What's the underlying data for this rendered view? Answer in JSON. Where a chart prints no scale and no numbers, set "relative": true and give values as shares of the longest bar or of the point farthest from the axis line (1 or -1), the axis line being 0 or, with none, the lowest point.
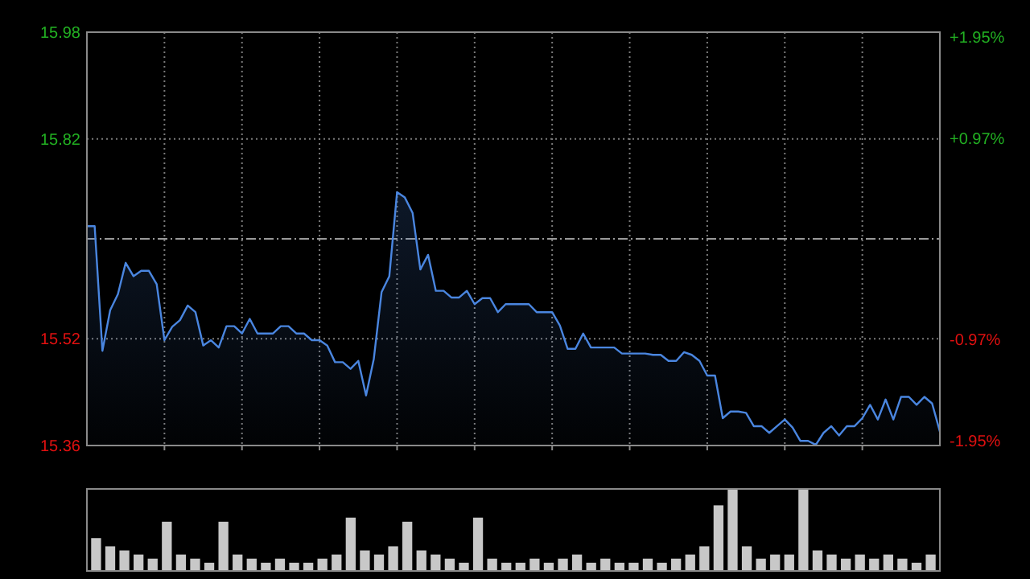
{
  "chart_data": [
    {
      "type": "area",
      "categories": [
        null,
        null,
        null,
        null,
        null,
        null,
        null,
        null,
        null,
        null,
        null,
        null,
        null,
        null,
        null,
        null,
        null,
        null,
        null,
        null,
        null,
        null,
        null,
        null,
        null,
        null,
        null,
        null,
        null,
        null,
        null,
        null,
        null,
        null,
        null,
        null,
        null,
        null,
        null,
        null,
        null,
        null,
        null,
        null,
        null,
        null,
        null,
        null,
        null,
        null,
        null,
        null,
        null,
        null,
        null,
        null,
        null,
        null,
        null,
        null,
        null,
        null,
        null,
        null,
        null,
        null,
        null,
        null,
        null,
        null,
        null,
        null,
        null,
        null,
        null,
        null,
        null,
        null,
        null,
        null,
        null,
        null,
        null,
        null,
        null,
        null,
        null,
        null,
        null,
        null,
        null,
        null,
        null,
        null,
        null,
        null,
        null,
        null,
        null,
        null,
        null,
        null,
        null,
        null,
        null,
        null,
        null,
        null,
        null,
        null,
        null
      ],
      "ylim": [
        15.36,
        15.98
      ],
      "yticks": [
        15.36,
        15.52,
        15.82,
        15.98
      ],
      "y2lim": [
        -2.0,
        2.0
      ],
      "y2ticks": [
        {
          "value": -1.95,
          "label": "-1.95%"
        },
        {
          "value": -0.97,
          "label": "-0.97%"
        },
        {
          "value": 0.97,
          "label": "+0.97%"
        },
        {
          "value": 1.95,
          "label": "+1.95%"
        }
      ],
      "grid": true,
      "ref_lines": [
        {
          "axis": "y",
          "value": 15.67,
          "line_style": "dashed",
          "color": "#9a9a9a"
        }
      ],
      "series": [
        {
          "color": "#4a86e0",
          "values": [
            15.689,
            15.689,
            15.502,
            15.563,
            15.587,
            15.634,
            15.614,
            15.622,
            15.622,
            15.602,
            15.518,
            15.538,
            15.548,
            15.57,
            15.56,
            15.51,
            15.518,
            15.507,
            15.539,
            15.539,
            15.528,
            15.55,
            15.528,
            15.528,
            15.528,
            15.539,
            15.539,
            15.528,
            15.528,
            15.518,
            15.518,
            15.51,
            15.485,
            15.485,
            15.475,
            15.487,
            15.435,
            15.49,
            15.59,
            15.614,
            15.74,
            15.732,
            15.709,
            15.624,
            15.646,
            15.592,
            15.592,
            15.582,
            15.582,
            15.592,
            15.572,
            15.581,
            15.581,
            15.56,
            15.572,
            15.572,
            15.572,
            15.572,
            15.56,
            15.56,
            15.56,
            15.54,
            15.505,
            15.505,
            15.528,
            15.507,
            15.507,
            15.507,
            15.507,
            15.498,
            15.498,
            15.498,
            15.498,
            15.496,
            15.496,
            15.487,
            15.487,
            15.5,
            15.496,
            15.487,
            15.465,
            15.465,
            15.401,
            15.411,
            15.411,
            15.409,
            15.389,
            15.389,
            15.379,
            15.389,
            15.399,
            15.387,
            15.367,
            15.367,
            15.361,
            15.379,
            15.389,
            15.375,
            15.389,
            15.389,
            15.401,
            15.421,
            15.399,
            15.429,
            15.399,
            15.433,
            15.433,
            15.421,
            15.433,
            15.423,
            15.381
          ]
        }
      ]
    },
    {
      "type": "bar",
      "relative": true,
      "color": "#c8c8c8",
      "categories": [
        null,
        null,
        null,
        null,
        null,
        null,
        null,
        null,
        null,
        null,
        null,
        null,
        null,
        null,
        null,
        null,
        null,
        null,
        null,
        null,
        null,
        null,
        null,
        null,
        null,
        null,
        null,
        null,
        null,
        null,
        null,
        null,
        null,
        null,
        null,
        null,
        null,
        null,
        null,
        null,
        null,
        null,
        null,
        null,
        null,
        null,
        null,
        null,
        null,
        null,
        null,
        null,
        null,
        null,
        null,
        null,
        null,
        null,
        null,
        null
      ],
      "values": [
        0.4,
        0.3,
        0.25,
        0.2,
        0.15,
        0.6,
        0.2,
        0.15,
        0.1,
        0.6,
        0.2,
        0.15,
        0.1,
        0.15,
        0.1,
        0.1,
        0.15,
        0.2,
        0.65,
        0.25,
        0.2,
        0.3,
        0.6,
        0.25,
        0.2,
        0.15,
        0.1,
        0.65,
        0.15,
        0.1,
        0.1,
        0.15,
        0.1,
        0.15,
        0.2,
        0.1,
        0.15,
        0.1,
        0.1,
        0.15,
        0.1,
        0.15,
        0.2,
        0.3,
        0.8,
        1,
        0.3,
        0.15,
        0.2,
        0.2,
        1,
        0.25,
        0.2,
        0.15,
        0.2,
        0.15,
        0.2,
        0.15,
        0.1,
        0.2
      ]
    }
  ]
}
